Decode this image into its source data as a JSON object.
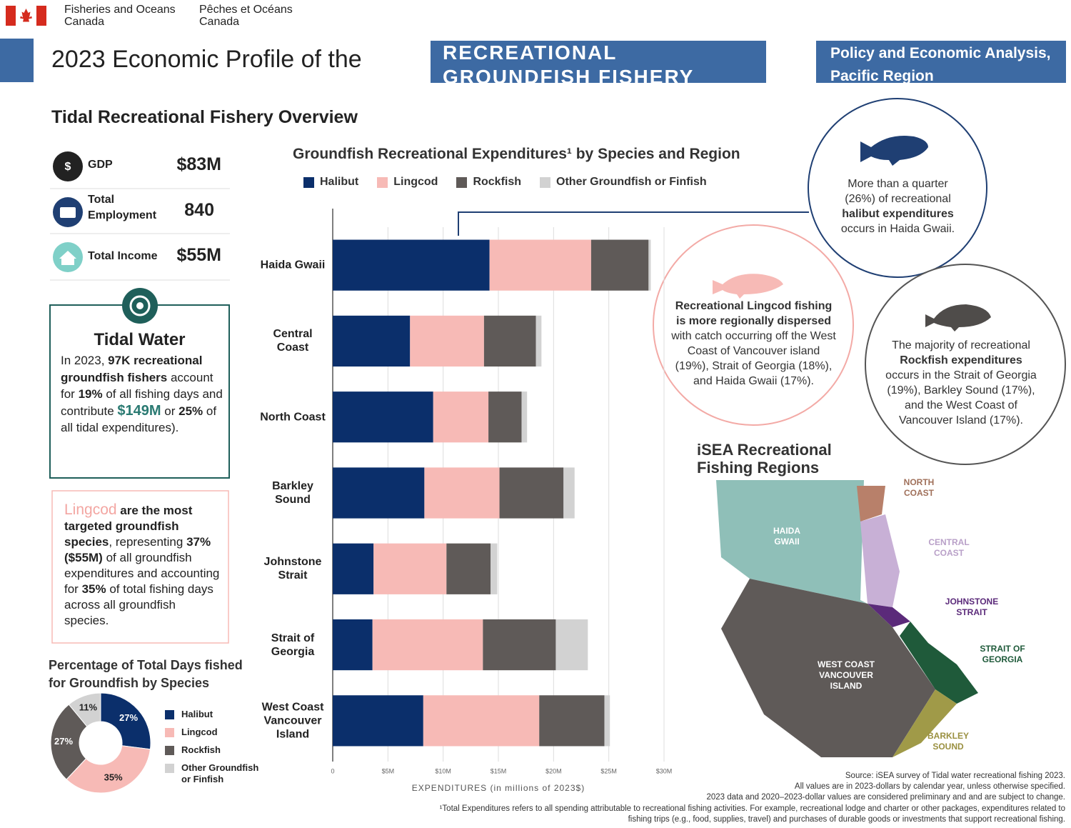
{
  "header": {
    "org_en": "Fisheries and Oceans Canada",
    "org_fr": "Pêches et Océans Canada",
    "title": "2023 Economic Profile of the",
    "title_highlight": "RECREATIONAL GROUNDFISH FISHERY",
    "branch": "Policy and Economic Analysis, Pacific Region"
  },
  "overview": {
    "heading": "Tidal Recreational Fishery Overview",
    "stats": [
      {
        "label": "GDP",
        "value": "$83M"
      },
      {
        "label": "Total Employment",
        "value": "840"
      },
      {
        "label": "Total Income",
        "value": "$55M"
      }
    ]
  },
  "tidal_water": {
    "heading": "Tidal Water",
    "text": [
      "In 2023, ",
      "97K recreational groundfish fishers",
      " account for ",
      "19%",
      " of all fishing days and contribute ",
      "$149M",
      " or ",
      "25%",
      " of all tidal expenditures)."
    ]
  },
  "lingcod_note": {
    "text": [
      "Lingcod",
      " are the most targeted groundfish species",
      ", representing ",
      "37% ($55M)",
      " of all groundfish expenditures and accounting for ",
      "35%",
      " of total fishing days across all groundfish species."
    ]
  },
  "chart_data": [
    {
      "type": "bar",
      "orientation": "horizontal",
      "stacked": true,
      "title": "Groundfish Recreational Expenditures¹ by Species and Region",
      "x_label": "EXPENDITURES  (in millions of 2023$)",
      "categories": [
        "Haida Gwaii",
        "Central Coast",
        "North Coast",
        "Barkley Sound",
        "Johnstone Strait",
        "Strait of Georgia",
        "West Coast Vancouver Island"
      ],
      "series": [
        {
          "name": "Halibut",
          "color": "#0b2f6b",
          "values": [
            14.2,
            7.0,
            9.1,
            8.3,
            3.7,
            3.6,
            8.2
          ]
        },
        {
          "name": "Lingcod",
          "color": "#f7bab6",
          "values": [
            9.2,
            6.7,
            5.0,
            6.8,
            6.6,
            10.0,
            10.5
          ]
        },
        {
          "name": "Rockfish",
          "color": "#5f5a58",
          "values": [
            5.2,
            4.7,
            3.0,
            5.8,
            4.0,
            6.6,
            5.9
          ]
        },
        {
          "name": "Other Groundfish or Finfish",
          "color": "#d2d2d2",
          "values": [
            0.2,
            0.5,
            0.5,
            1.0,
            0.6,
            2.9,
            0.5
          ]
        }
      ],
      "xlim": [
        0,
        30
      ],
      "xticks": [
        0,
        {
          "value": 5,
          "label": "$5M"
        },
        {
          "value": 10,
          "label": "$10M"
        },
        {
          "value": 15,
          "label": "$15M"
        },
        {
          "value": 20,
          "label": "$20M"
        },
        {
          "value": 25,
          "label": "$25M"
        },
        {
          "value": 30,
          "label": "$30M"
        }
      ],
      "grid": true,
      "legend": "top"
    },
    {
      "type": "pie",
      "title": "Percentage of Total Days fished for Groundfish by Species",
      "categories": [
        "Halibut",
        "Lingcod",
        "Rockfish",
        "Other Groundfish or Finfish"
      ],
      "values": [
        27,
        35,
        27,
        11
      ],
      "value_labels": [
        "27%",
        "35%",
        "27%",
        "11%"
      ],
      "colors": [
        "#0b2f6b",
        "#f7bab6",
        "#5f5a58",
        "#d2d2d2"
      ],
      "legend": "right"
    }
  ],
  "callouts": {
    "halibut": [
      "More than a quarter (26%) of recreational ",
      "halibut expenditures",
      " occurs in Haida Gwaii."
    ],
    "lingcod": [
      "Recreational Lingcod fishing is more regionally dispersed",
      " with catch occurring off the West Coast of Vancouver island (19%), Strait of Georgia (18%), and Haida Gwaii (17%)."
    ],
    "rockfish": [
      "The majority of recreational ",
      "Rockfish expenditures",
      " occurs in the Strait of Georgia (19%), Barkley Sound (17%), and the West Coast of Vancouver Island (17%)."
    ]
  },
  "map": {
    "title": "iSEA Recreational Fishing Regions",
    "regions": [
      "NORTH COAST",
      "HAIDA GWAII",
      "CENTRAL COAST",
      "JOHNSTONE STRAIT",
      "STRAIT OF GEORGIA",
      "WEST COAST VANCOUVER ISLAND",
      "BARKLEY SOUND"
    ]
  },
  "notes": [
    "Source: iSEA survey of Tidal water recreational fishing 2023.",
    "All values are in 2023-dollars by calendar year, unless otherwise specified.",
    "2023 data and 2020–2023-dollar values are considered preliminary and and are subject to change.",
    "¹Total Expenditures refers to all spending attributable to recreational fishing activities. For example, recreational lodge and charter or other packages, expenditures related to fishing trips (e.g., food, supplies, travel) and purchases of durable goods or investments that support recreational fishing."
  ]
}
